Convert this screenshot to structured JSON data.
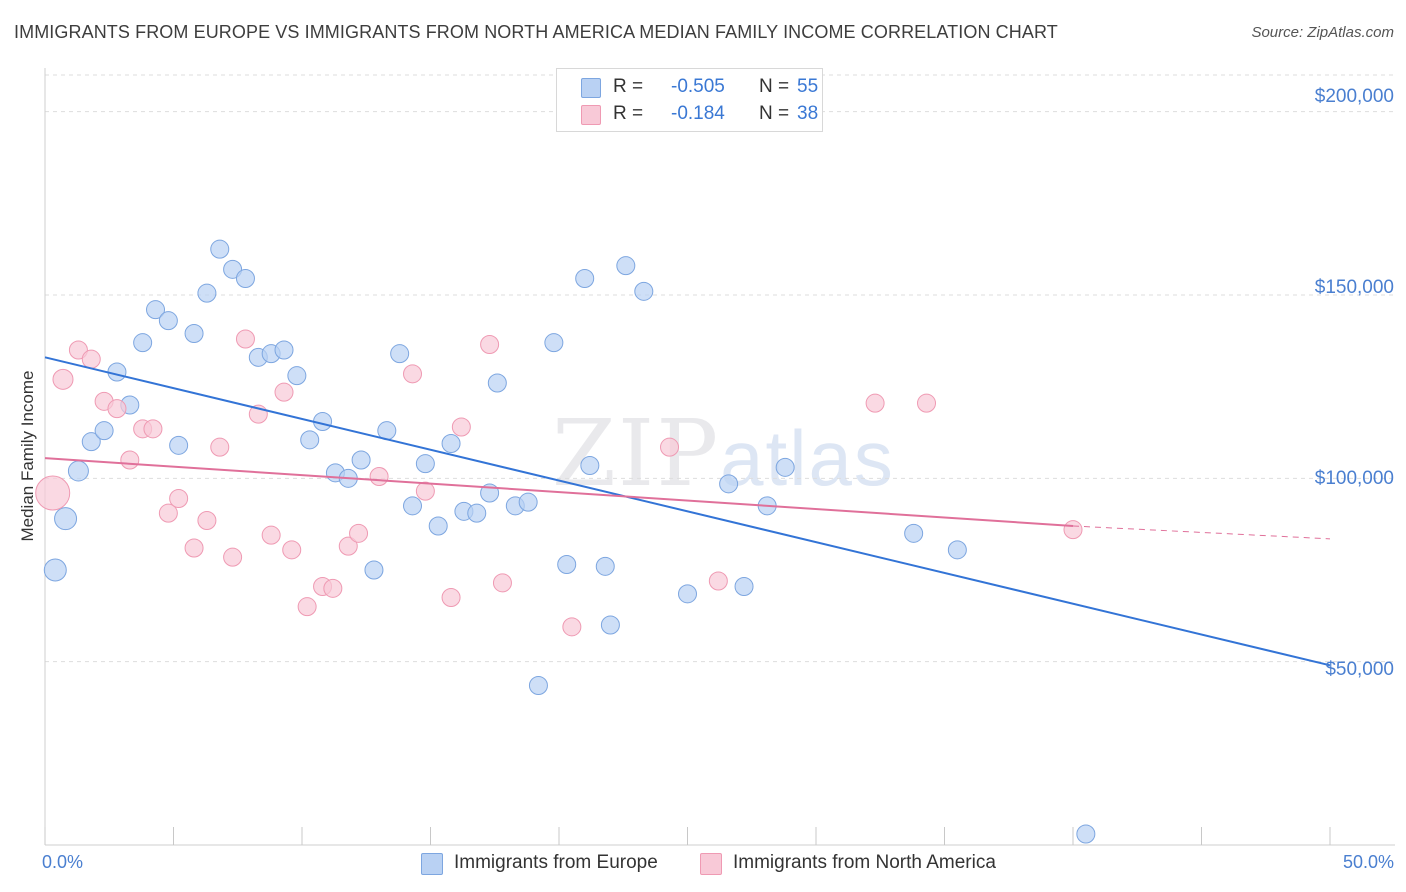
{
  "title": "IMMIGRANTS FROM EUROPE VS IMMIGRANTS FROM NORTH AMERICA MEDIAN FAMILY INCOME CORRELATION CHART",
  "source": "Source: ZipAtlas.com",
  "watermark": {
    "zip": "ZIP",
    "atlas": "atlas"
  },
  "legend": {
    "europe": {
      "r_label": "R =",
      "r_value": "-0.505",
      "n_label": "N =",
      "n_value": "55"
    },
    "north_america": {
      "r_label": "R =",
      "r_value": "-0.184",
      "n_label": "N =",
      "n_value": "38"
    }
  },
  "bottom_legend": {
    "europe": "Immigrants from Europe",
    "north_america": "Immigrants from North America"
  },
  "colors": {
    "europe_fill": "#b9d1f3",
    "europe_stroke": "#7da6e0",
    "europe_line": "#3374d6",
    "na_fill": "#f8c9d7",
    "na_stroke": "#ef9ab3",
    "na_line": "#e0709a",
    "grid": "#dddddd",
    "tick_text": "#4a7fd0"
  },
  "chart_data": {
    "type": "scatter",
    "title": "IMMIGRANTS FROM EUROPE VS IMMIGRANTS FROM NORTH AMERICA MEDIAN FAMILY INCOME CORRELATION CHART",
    "xlabel": "",
    "ylabel": "Median Family Income",
    "xlim": [
      0,
      50
    ],
    "ylim": [
      0,
      210000
    ],
    "x_tick_labels": [
      "0.0%",
      "50.0%"
    ],
    "y_ticks": [
      50000,
      100000,
      150000,
      200000
    ],
    "y_tick_labels": [
      "$50,000",
      "$100,000",
      "$150,000",
      "$200,000"
    ],
    "grid": true,
    "series": [
      {
        "name": "Immigrants from Europe",
        "r": -0.505,
        "n": 55,
        "trend": {
          "x": [
            0,
            50
          ],
          "y": [
            133000,
            49000
          ]
        },
        "points": [
          {
            "x": 0.4,
            "y": 75000,
            "s": 11
          },
          {
            "x": 0.8,
            "y": 89000,
            "s": 11
          },
          {
            "x": 1.3,
            "y": 102000,
            "s": 10
          },
          {
            "x": 1.8,
            "y": 110000,
            "s": 9
          },
          {
            "x": 2.3,
            "y": 113000,
            "s": 9
          },
          {
            "x": 2.8,
            "y": 129000,
            "s": 9
          },
          {
            "x": 3.3,
            "y": 120000,
            "s": 9
          },
          {
            "x": 3.8,
            "y": 137000,
            "s": 9
          },
          {
            "x": 4.3,
            "y": 146000,
            "s": 9
          },
          {
            "x": 4.8,
            "y": 143000,
            "s": 9
          },
          {
            "x": 5.2,
            "y": 109000,
            "s": 9
          },
          {
            "x": 5.8,
            "y": 139500,
            "s": 9
          },
          {
            "x": 6.3,
            "y": 150500,
            "s": 9
          },
          {
            "x": 6.8,
            "y": 162500,
            "s": 9
          },
          {
            "x": 7.3,
            "y": 157000,
            "s": 9
          },
          {
            "x": 7.8,
            "y": 154500,
            "s": 9
          },
          {
            "x": 8.3,
            "y": 133000,
            "s": 9
          },
          {
            "x": 8.8,
            "y": 134000,
            "s": 9
          },
          {
            "x": 9.3,
            "y": 135000,
            "s": 9
          },
          {
            "x": 9.8,
            "y": 128000,
            "s": 9
          },
          {
            "x": 10.3,
            "y": 110500,
            "s": 9
          },
          {
            "x": 10.8,
            "y": 115500,
            "s": 9
          },
          {
            "x": 11.3,
            "y": 101500,
            "s": 9
          },
          {
            "x": 11.8,
            "y": 100000,
            "s": 9
          },
          {
            "x": 12.3,
            "y": 105000,
            "s": 9
          },
          {
            "x": 12.8,
            "y": 75000,
            "s": 9
          },
          {
            "x": 13.3,
            "y": 113000,
            "s": 9
          },
          {
            "x": 13.8,
            "y": 134000,
            "s": 9
          },
          {
            "x": 14.3,
            "y": 92500,
            "s": 9
          },
          {
            "x": 14.8,
            "y": 104000,
            "s": 9
          },
          {
            "x": 15.3,
            "y": 87000,
            "s": 9
          },
          {
            "x": 15.8,
            "y": 109500,
            "s": 9
          },
          {
            "x": 16.3,
            "y": 91000,
            "s": 9
          },
          {
            "x": 16.8,
            "y": 90500,
            "s": 9
          },
          {
            "x": 17.3,
            "y": 96000,
            "s": 9
          },
          {
            "x": 17.6,
            "y": 126000,
            "s": 9
          },
          {
            "x": 18.3,
            "y": 92500,
            "s": 9
          },
          {
            "x": 18.8,
            "y": 93500,
            "s": 9
          },
          {
            "x": 19.2,
            "y": 43500,
            "s": 9
          },
          {
            "x": 19.8,
            "y": 137000,
            "s": 9
          },
          {
            "x": 20.3,
            "y": 76500,
            "s": 9
          },
          {
            "x": 21.0,
            "y": 154500,
            "s": 9
          },
          {
            "x": 21.2,
            "y": 103500,
            "s": 9
          },
          {
            "x": 21.8,
            "y": 76000,
            "s": 9
          },
          {
            "x": 22.0,
            "y": 60000,
            "s": 9
          },
          {
            "x": 22.6,
            "y": 158000,
            "s": 9
          },
          {
            "x": 23.3,
            "y": 151000,
            "s": 9
          },
          {
            "x": 25.0,
            "y": 68500,
            "s": 9
          },
          {
            "x": 26.6,
            "y": 98500,
            "s": 9
          },
          {
            "x": 27.2,
            "y": 70500,
            "s": 9
          },
          {
            "x": 28.1,
            "y": 92500,
            "s": 9
          },
          {
            "x": 28.8,
            "y": 103000,
            "s": 9
          },
          {
            "x": 33.8,
            "y": 85000,
            "s": 9
          },
          {
            "x": 35.5,
            "y": 80500,
            "s": 9
          },
          {
            "x": 40.5,
            "y": 3000,
            "s": 9
          }
        ]
      },
      {
        "name": "Immigrants from North America",
        "r": -0.184,
        "n": 38,
        "trend": {
          "x": [
            0,
            40
          ],
          "y": [
            105500,
            87000
          ]
        },
        "trend_dashed": {
          "x": [
            40,
            50
          ],
          "y": [
            87000,
            83500
          ]
        },
        "points": [
          {
            "x": 0.3,
            "y": 96000,
            "s": 17
          },
          {
            "x": 0.7,
            "y": 127000,
            "s": 10
          },
          {
            "x": 1.3,
            "y": 135000,
            "s": 9
          },
          {
            "x": 1.8,
            "y": 132500,
            "s": 9
          },
          {
            "x": 2.3,
            "y": 121000,
            "s": 9
          },
          {
            "x": 2.8,
            "y": 119000,
            "s": 9
          },
          {
            "x": 3.3,
            "y": 105000,
            "s": 9
          },
          {
            "x": 3.8,
            "y": 113500,
            "s": 9
          },
          {
            "x": 4.2,
            "y": 113500,
            "s": 9
          },
          {
            "x": 4.8,
            "y": 90500,
            "s": 9
          },
          {
            "x": 5.2,
            "y": 94500,
            "s": 9
          },
          {
            "x": 5.8,
            "y": 81000,
            "s": 9
          },
          {
            "x": 6.3,
            "y": 88500,
            "s": 9
          },
          {
            "x": 6.8,
            "y": 108500,
            "s": 9
          },
          {
            "x": 7.3,
            "y": 78500,
            "s": 9
          },
          {
            "x": 7.8,
            "y": 138000,
            "s": 9
          },
          {
            "x": 8.3,
            "y": 117500,
            "s": 9
          },
          {
            "x": 8.8,
            "y": 84500,
            "s": 9
          },
          {
            "x": 9.3,
            "y": 123500,
            "s": 9
          },
          {
            "x": 9.6,
            "y": 80500,
            "s": 9
          },
          {
            "x": 10.2,
            "y": 65000,
            "s": 9
          },
          {
            "x": 10.8,
            "y": 70500,
            "s": 9
          },
          {
            "x": 11.2,
            "y": 70000,
            "s": 9
          },
          {
            "x": 11.8,
            "y": 81500,
            "s": 9
          },
          {
            "x": 12.2,
            "y": 85000,
            "s": 9
          },
          {
            "x": 13.0,
            "y": 100500,
            "s": 9
          },
          {
            "x": 14.3,
            "y": 128500,
            "s": 9
          },
          {
            "x": 14.8,
            "y": 96500,
            "s": 9
          },
          {
            "x": 15.8,
            "y": 67500,
            "s": 9
          },
          {
            "x": 16.2,
            "y": 114000,
            "s": 9
          },
          {
            "x": 17.3,
            "y": 136500,
            "s": 9
          },
          {
            "x": 17.8,
            "y": 71500,
            "s": 9
          },
          {
            "x": 20.5,
            "y": 59500,
            "s": 9
          },
          {
            "x": 24.3,
            "y": 108500,
            "s": 9
          },
          {
            "x": 26.2,
            "y": 72000,
            "s": 9
          },
          {
            "x": 32.3,
            "y": 120500,
            "s": 9
          },
          {
            "x": 34.3,
            "y": 120500,
            "s": 9
          },
          {
            "x": 40.0,
            "y": 86000,
            "s": 9
          }
        ]
      }
    ]
  }
}
